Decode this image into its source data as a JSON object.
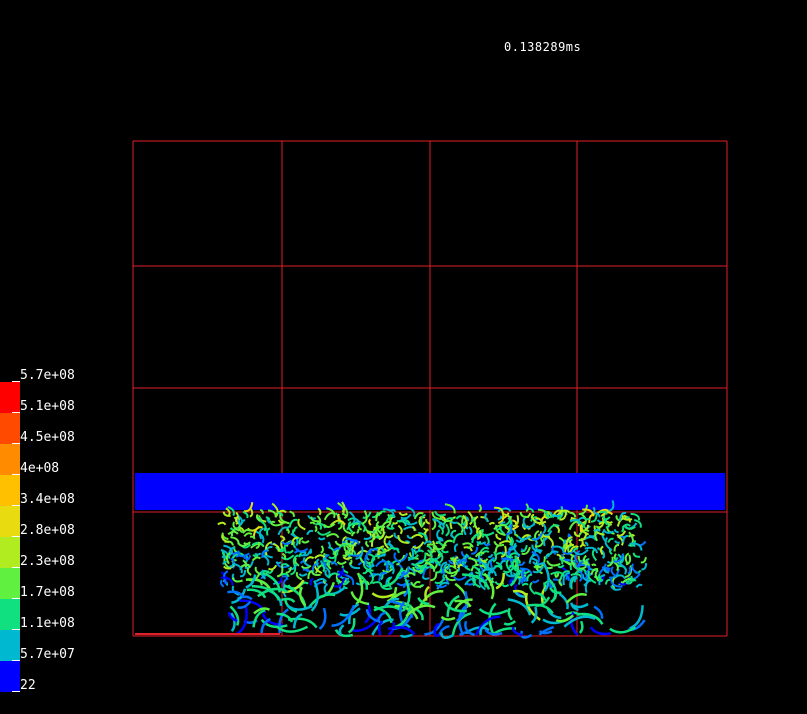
{
  "time_label": "0.138289ms",
  "legend": {
    "labels": [
      "5.7e+08",
      "5.1e+08",
      "4.5e+08",
      "4e+08",
      "3.4e+08",
      "2.8e+08",
      "2.3e+08",
      "1.7e+08",
      "1.1e+08",
      "5.7e+07",
      "22"
    ],
    "colors": [
      "#ff0000",
      "#ff4a00",
      "#ff8c00",
      "#ffc000",
      "#e8dc10",
      "#b0ec20",
      "#60f040",
      "#10e080",
      "#00b8d0",
      "#0070ff",
      "#0000ff"
    ]
  },
  "colors": {
    "grid": "#e0202a",
    "plate": "#0000ff",
    "background": "#000000"
  }
}
